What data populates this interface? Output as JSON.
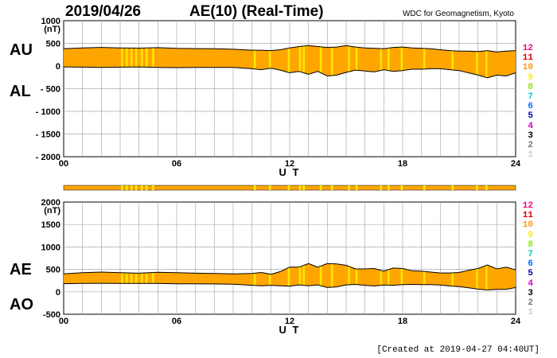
{
  "header": {
    "date": "2019/04/26",
    "title": "AE(10) (Real-Time)",
    "source": "WDC for Geomagnetism, Kyoto"
  },
  "footer": "[Created at 2019-04-27 04:40UT]",
  "labels": {
    "au": "AU",
    "al": "AL",
    "ae": "AE",
    "ao": "AO"
  },
  "colors": {
    "fill": "#ffa500",
    "highlight": "#ffee00",
    "grid": "#aaaaaa",
    "line": "#000000"
  },
  "legend_levels": [
    {
      "label": "12",
      "color": "#ff0080"
    },
    {
      "label": "11",
      "color": "#dd0000"
    },
    {
      "label": "10",
      "color": "#ff9900"
    },
    {
      "label": "9",
      "color": "#ffee00"
    },
    {
      "label": "8",
      "color": "#88ee00"
    },
    {
      "label": "7",
      "color": "#00cccc"
    },
    {
      "label": "6",
      "color": "#0066ff"
    },
    {
      "label": "5",
      "color": "#0000aa"
    },
    {
      "label": "4",
      "color": "#cc00cc"
    },
    {
      "label": "3",
      "color": "#000000"
    },
    {
      "label": "2",
      "color": "#777777"
    },
    {
      "label": "1",
      "color": "#cccccc"
    }
  ],
  "chart_data": [
    {
      "type": "area",
      "panel": "AU/AL",
      "unit": "(nT)",
      "xlabel": "U T",
      "x_ticks": [
        "00",
        "06",
        "12",
        "18",
        "24"
      ],
      "y_ticks": [
        "1000",
        "500",
        "0",
        "- 500",
        "- 1000",
        "- 1500",
        "- 2000"
      ],
      "ylim": [
        -2000,
        1000
      ],
      "xlim": [
        0,
        24
      ],
      "x_hours": [
        0,
        1,
        2,
        3,
        4,
        5,
        6,
        7,
        8,
        9,
        10,
        10.5,
        11,
        11.5,
        12,
        12.5,
        13,
        13.5,
        14,
        14.5,
        15,
        15.5,
        16,
        16.5,
        17,
        17.5,
        18,
        18.5,
        19,
        19.5,
        20,
        20.5,
        21,
        21.5,
        22,
        22.5,
        23,
        23.5,
        24
      ],
      "series": [
        {
          "name": "AU",
          "values": [
            380,
            400,
            410,
            400,
            395,
            405,
            390,
            385,
            380,
            370,
            350,
            350,
            340,
            360,
            400,
            430,
            450,
            430,
            410,
            420,
            450,
            420,
            400,
            390,
            380,
            410,
            420,
            400,
            390,
            380,
            360,
            340,
            330,
            330,
            320,
            340,
            310,
            330,
            340
          ]
        },
        {
          "name": "AL",
          "values": [
            -20,
            -25,
            -30,
            -25,
            -20,
            -30,
            -35,
            -30,
            -30,
            -30,
            -60,
            -80,
            -50,
            -90,
            -150,
            -120,
            -180,
            -120,
            -220,
            -200,
            -140,
            -90,
            -110,
            -130,
            -80,
            -120,
            -100,
            -70,
            -70,
            -60,
            -60,
            -80,
            -100,
            -150,
            -200,
            -260,
            -200,
            -220,
            -150
          ]
        }
      ]
    },
    {
      "type": "area",
      "panel": "AE/AO",
      "unit": "(nT)",
      "xlabel": "U T",
      "x_ticks": [
        "00",
        "06",
        "12",
        "18",
        "24"
      ],
      "y_ticks": [
        "2000",
        "1500",
        "1000",
        "500",
        "0",
        "-500"
      ],
      "ylim": [
        -500,
        2000
      ],
      "xlim": [
        0,
        24
      ],
      "x_hours": [
        0,
        1,
        2,
        3,
        4,
        5,
        6,
        7,
        8,
        9,
        10,
        10.5,
        11,
        11.5,
        12,
        12.5,
        13,
        13.5,
        14,
        14.5,
        15,
        15.5,
        16,
        16.5,
        17,
        17.5,
        18,
        18.5,
        19,
        19.5,
        20,
        20.5,
        21,
        21.5,
        22,
        22.5,
        23,
        23.5,
        24
      ],
      "series": [
        {
          "name": "AE",
          "values": [
            400,
            425,
            440,
            425,
            415,
            435,
            425,
            415,
            410,
            400,
            410,
            430,
            390,
            450,
            550,
            550,
            630,
            550,
            630,
            620,
            590,
            510,
            510,
            520,
            460,
            530,
            520,
            470,
            460,
            440,
            420,
            420,
            430,
            480,
            520,
            600,
            510,
            550,
            490
          ]
        },
        {
          "name": "AO",
          "values": [
            180,
            188,
            190,
            188,
            188,
            188,
            178,
            178,
            175,
            170,
            145,
            135,
            145,
            135,
            125,
            155,
            135,
            155,
            95,
            110,
            155,
            165,
            145,
            130,
            150,
            145,
            160,
            165,
            160,
            160,
            150,
            130,
            115,
            90,
            60,
            40,
            55,
            55,
            95
          ]
        }
      ]
    }
  ]
}
